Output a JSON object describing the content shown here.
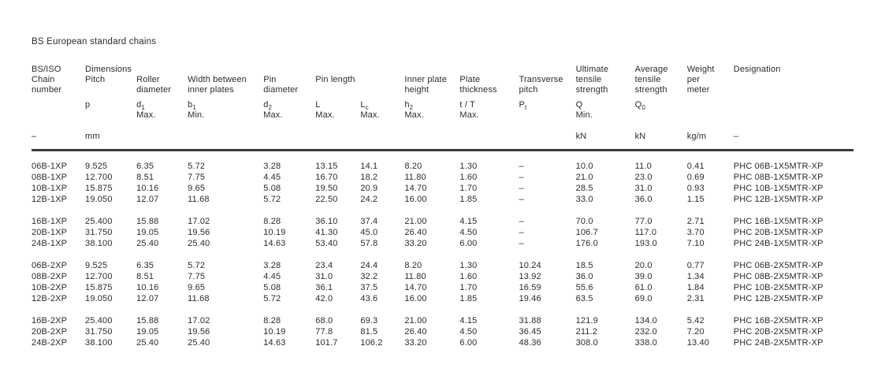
{
  "title": "BS European standard chains",
  "table": {
    "group_header": {
      "chain": "BS/ISO\nChain\nnumber",
      "dimensions": "Dimensions",
      "ultimate": "Ultimate\ntensile\nstrength",
      "average": "Average\ntensile\nstrength",
      "weight": "Weight\nper\nmeter",
      "designation": "Designation"
    },
    "dim_headers": [
      "Pitch",
      "Roller\ndiameter",
      "Width between\ninner plates",
      "Pin\ndiameter",
      "Pin length",
      "Inner plate\nheight",
      "Plate\nthickness",
      "Transverse\npitch"
    ],
    "symbols": [
      {
        "base": "",
        "sub": "",
        "note": ""
      },
      {
        "base": "p",
        "sub": "",
        "note": ""
      },
      {
        "base": "d",
        "sub": "1",
        "note": "Max."
      },
      {
        "base": "b",
        "sub": "1",
        "note": "Min."
      },
      {
        "base": "d",
        "sub": "2",
        "note": "Max."
      },
      {
        "base": "L",
        "sub": "",
        "note": "Max."
      },
      {
        "base": "L",
        "sub": "c",
        "note": "Max."
      },
      {
        "base": "h",
        "sub": "2",
        "note": "Max."
      },
      {
        "base": "t / T",
        "sub": "",
        "note": "Max."
      },
      {
        "base": "P",
        "sub": "t",
        "note": ""
      },
      {
        "base": "Q",
        "sub": "",
        "note": "Min."
      },
      {
        "base": "Q",
        "sub": "0",
        "note": ""
      },
      {
        "base": "",
        "sub": "",
        "note": ""
      },
      {
        "base": "",
        "sub": "",
        "note": ""
      }
    ],
    "units": [
      "–",
      "mm",
      "",
      "",
      "",
      "",
      "",
      "",
      "",
      "",
      "kN",
      "kN",
      "kg/m",
      "–"
    ],
    "groups": [
      {
        "rows": [
          [
            "06B-1XP",
            "9.525",
            "6.35",
            "5.72",
            "3.28",
            "13.15",
            "14.1",
            "8.20",
            "1.30",
            "–",
            "10.0",
            "11.0",
            "0.41",
            "PHC 06B-1X5MTR-XP"
          ],
          [
            "08B-1XP",
            "12.700",
            "8.51",
            "7.75",
            "4.45",
            "16.70",
            "18.2",
            "11.80",
            "1.60",
            "–",
            "21.0",
            "23.0",
            "0.69",
            "PHC 08B-1X5MTR-XP"
          ],
          [
            "10B-1XP",
            "15.875",
            "10.16",
            "9.65",
            "5.08",
            "19.50",
            "20.9",
            "14.70",
            "1.70",
            "–",
            "28.5",
            "31.0",
            "0.93",
            "PHC 10B-1X5MTR-XP"
          ],
          [
            "12B-1XP",
            "19.050",
            "12.07",
            "11.68",
            "5.72",
            "22.50",
            "24.2",
            "16.00",
            "1.85",
            "–",
            "33.0",
            "36.0",
            "1.15",
            "PHC 12B-1X5MTR-XP"
          ]
        ]
      },
      {
        "rows": [
          [
            "16B-1XP",
            "25.400",
            "15.88",
            "17.02",
            "8.28",
            "36.10",
            "37.4",
            "21.00",
            "4.15",
            "–",
            "70.0",
            "77.0",
            "2.71",
            "PHC 16B-1X5MTR-XP"
          ],
          [
            "20B-1XP",
            "31.750",
            "19.05",
            "19.56",
            "10.19",
            "41.30",
            "45.0",
            "26.40",
            "4.50",
            "–",
            "106.7",
            "117.0",
            "3.70",
            "PHC 20B-1X5MTR-XP"
          ],
          [
            "24B-1XP",
            "38.100",
            "25.40",
            "25.40",
            "14.63",
            "53.40",
            "57.8",
            "33.20",
            "6.00",
            "–",
            "176.0",
            "193.0",
            "7.10",
            "PHC 24B-1X5MTR-XP"
          ]
        ]
      },
      {
        "rows": [
          [
            "06B-2XP",
            "9.525",
            "6.35",
            "5.72",
            "3.28",
            "23.4",
            "24.4",
            "8.20",
            "1.30",
            "10.24",
            "18.5",
            "20.0",
            "0.77",
            "PHC 06B-2X5MTR-XP"
          ],
          [
            "08B-2XP",
            "12.700",
            "8.51",
            "7.75",
            "4.45",
            "31.0",
            "32.2",
            "11.80",
            "1.60",
            "13.92",
            "36.0",
            "39.0",
            "1.34",
            "PHC 08B-2X5MTR-XP"
          ],
          [
            "10B-2XP",
            "15.875",
            "10.16",
            "9.65",
            "5.08",
            "36.1",
            "37.5",
            "14.70",
            "1.70",
            "16.59",
            "55.6",
            "61.0",
            "1.84",
            "PHC 10B-2X5MTR-XP"
          ],
          [
            "12B-2XP",
            "19.050",
            "12.07",
            "11.68",
            "5.72",
            "42.0",
            "43.6",
            "16.00",
            "1.85",
            "19.46",
            "63.5",
            "69.0",
            "2.31",
            "PHC 12B-2X5MTR-XP"
          ]
        ]
      },
      {
        "rows": [
          [
            "16B-2XP",
            "25.400",
            "15.88",
            "17.02",
            "8.28",
            "68.0",
            "69.3",
            "21.00",
            "4.15",
            "31.88",
            "121.9",
            "134.0",
            "5.42",
            "PHC 16B-2X5MTR-XP"
          ],
          [
            "20B-2XP",
            "31.750",
            "19.05",
            "19.56",
            "10.19",
            "77.8",
            "81.5",
            "26.40",
            "4.50",
            "36.45",
            "211.2",
            "232.0",
            "7.20",
            "PHC 20B-2X5MTR-XP"
          ],
          [
            "24B-2XP",
            "38.100",
            "25.40",
            "25.40",
            "14.63",
            "101.7",
            "106.2",
            "33.20",
            "6.00",
            "48.36",
            "308.0",
            "338.0",
            "13.40",
            "PHC 24B-2X5MTR-XP"
          ]
        ]
      }
    ]
  }
}
